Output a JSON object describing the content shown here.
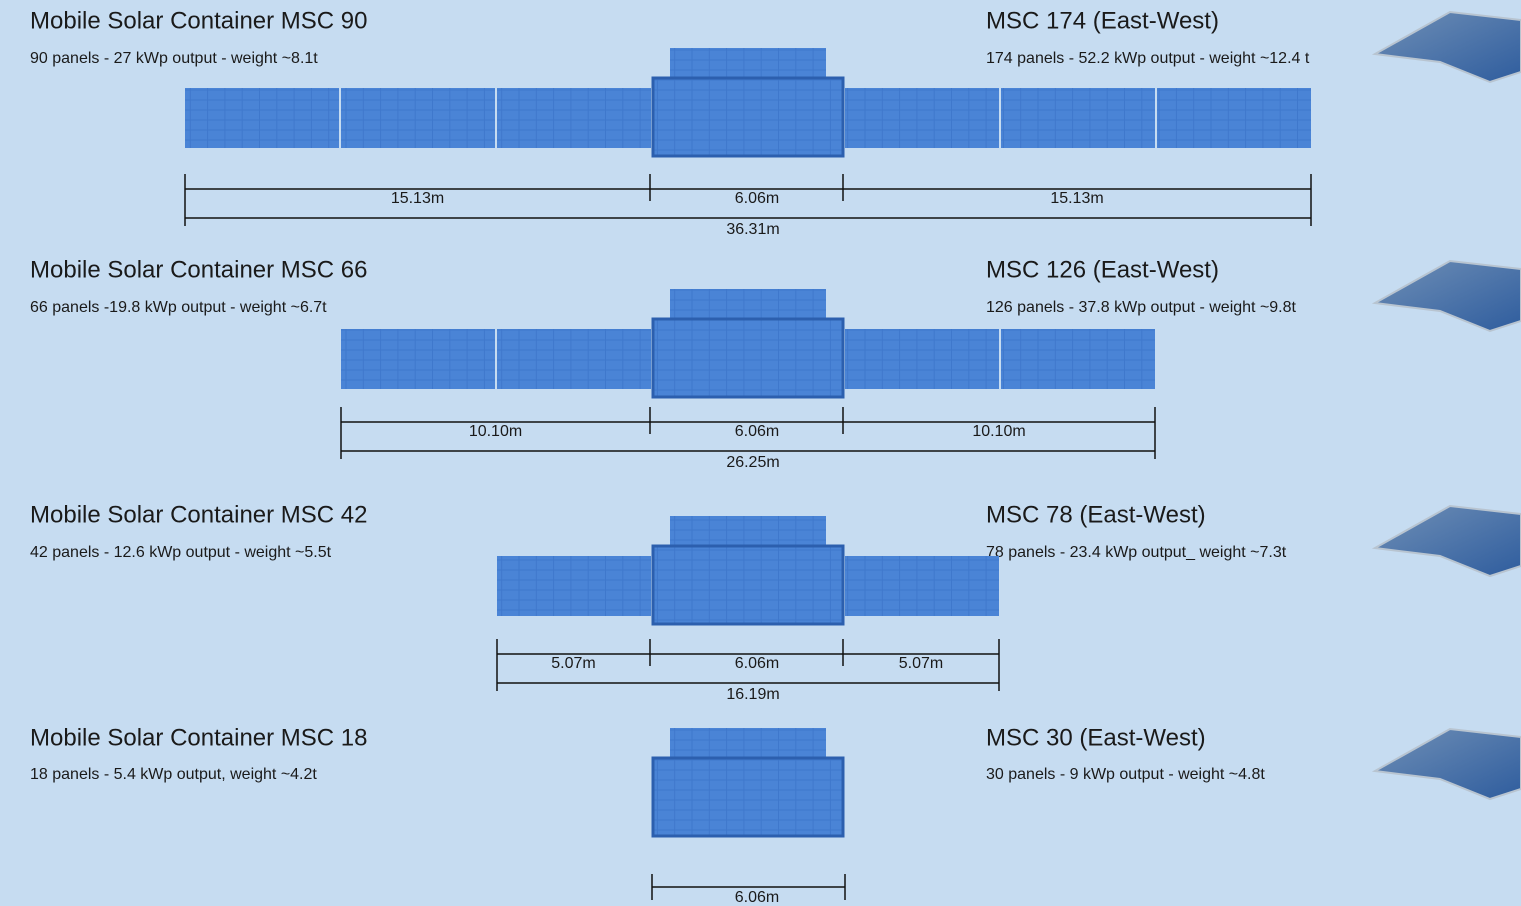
{
  "rows": [
    {
      "title": "Mobile Solar Container MSC 90",
      "specs": "90 panels - 27 kWp output - weight ~8.1t",
      "ew_title": "MSC 174  (East-West)",
      "ew_specs": "174 panels - 52.2 kWp output -  weight ~12.4 t",
      "dims": {
        "left": "15.13m",
        "center": "6.06m",
        "right": "15.13m",
        "total": "36.31m"
      }
    },
    {
      "title": "Mobile Solar Container  MSC 66",
      "specs": "66 panels -19.8 kWp output - weight ~6.7t",
      "ew_title": "MSC 126 (East-West)",
      "ew_specs": "126 panels - 37.8 kWp output - weight ~9.8t",
      "dims": {
        "left": "10.10m",
        "center": "6.06m",
        "right": "10.10m",
        "total": "26.25m"
      }
    },
    {
      "title": "Mobile Solar Container  MSC 42",
      "specs": "42 panels - 12.6 kWp output - weight ~5.5t",
      "ew_title": "MSC 78 (East-West)",
      "ew_specs": "78 panels - 23.4 kWp output_ weight ~7.3t",
      "dims": {
        "left": "5.07m",
        "center": "6.06m",
        "right": "5.07m",
        "total": "16.19m"
      }
    },
    {
      "title": "Mobile Solar Container MSC 18",
      "specs": "18 panels - 5.4 kWp output, weight ~4.2t",
      "ew_title": "MSC 30 (East-West)",
      "ew_specs": "30 panels - 9 kWp output - weight ~4.8t",
      "dims": {
        "center": "6.06m"
      }
    }
  ]
}
